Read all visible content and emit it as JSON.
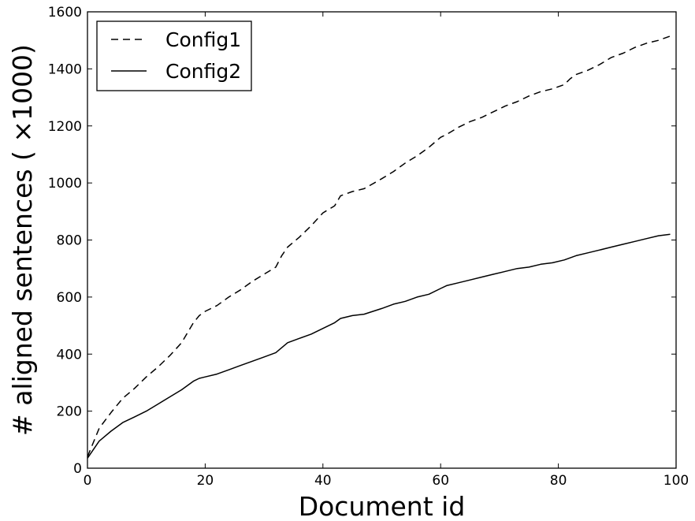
{
  "chart_data": {
    "type": "line",
    "xlabel": "Document id",
    "ylabel": "# aligned sentences ( ×1000)",
    "xlim": [
      0,
      100
    ],
    "ylim": [
      0,
      1600
    ],
    "xticks": [
      0,
      20,
      40,
      60,
      80,
      100
    ],
    "yticks": [
      0,
      200,
      400,
      600,
      800,
      1000,
      1200,
      1400,
      1600
    ],
    "grid": false,
    "legend_position": "top-left",
    "series": [
      {
        "name": "Config1",
        "style": "dashed",
        "color": "#000000",
        "x": [
          0,
          2,
          4,
          6,
          8,
          10,
          12,
          14,
          16,
          18,
          19,
          20,
          22,
          24,
          26,
          28,
          30,
          32,
          33,
          34,
          36,
          38,
          40,
          42,
          43,
          45,
          47,
          50,
          52,
          54,
          56,
          58,
          60,
          61,
          63,
          65,
          67,
          69,
          71,
          73,
          75,
          77,
          79,
          81,
          82,
          83,
          85,
          87,
          89,
          91,
          93,
          95,
          97,
          99
        ],
        "values": [
          40,
          140,
          195,
          245,
          280,
          320,
          355,
          395,
          440,
          510,
          535,
          550,
          570,
          600,
          625,
          655,
          680,
          705,
          745,
          775,
          810,
          850,
          895,
          920,
          955,
          970,
          980,
          1015,
          1040,
          1070,
          1095,
          1125,
          1160,
          1170,
          1195,
          1215,
          1230,
          1250,
          1270,
          1285,
          1305,
          1320,
          1330,
          1345,
          1365,
          1380,
          1395,
          1415,
          1440,
          1455,
          1475,
          1490,
          1500,
          1515
        ]
      },
      {
        "name": "Config2",
        "style": "solid",
        "color": "#000000",
        "x": [
          0,
          2,
          4,
          6,
          8,
          10,
          12,
          14,
          16,
          18,
          19,
          20,
          22,
          24,
          26,
          28,
          30,
          32,
          34,
          36,
          38,
          40,
          42,
          43,
          45,
          47,
          50,
          52,
          54,
          56,
          58,
          60,
          61,
          63,
          65,
          67,
          69,
          71,
          73,
          75,
          77,
          79,
          81,
          83,
          85,
          87,
          89,
          91,
          93,
          95,
          97,
          99
        ],
        "values": [
          35,
          95,
          130,
          160,
          180,
          200,
          225,
          250,
          275,
          305,
          315,
          320,
          330,
          345,
          360,
          375,
          390,
          405,
          440,
          455,
          470,
          490,
          510,
          525,
          535,
          540,
          560,
          575,
          585,
          600,
          610,
          630,
          640,
          650,
          660,
          670,
          680,
          690,
          700,
          705,
          715,
          720,
          730,
          745,
          755,
          765,
          775,
          785,
          795,
          805,
          815,
          820
        ]
      }
    ]
  }
}
